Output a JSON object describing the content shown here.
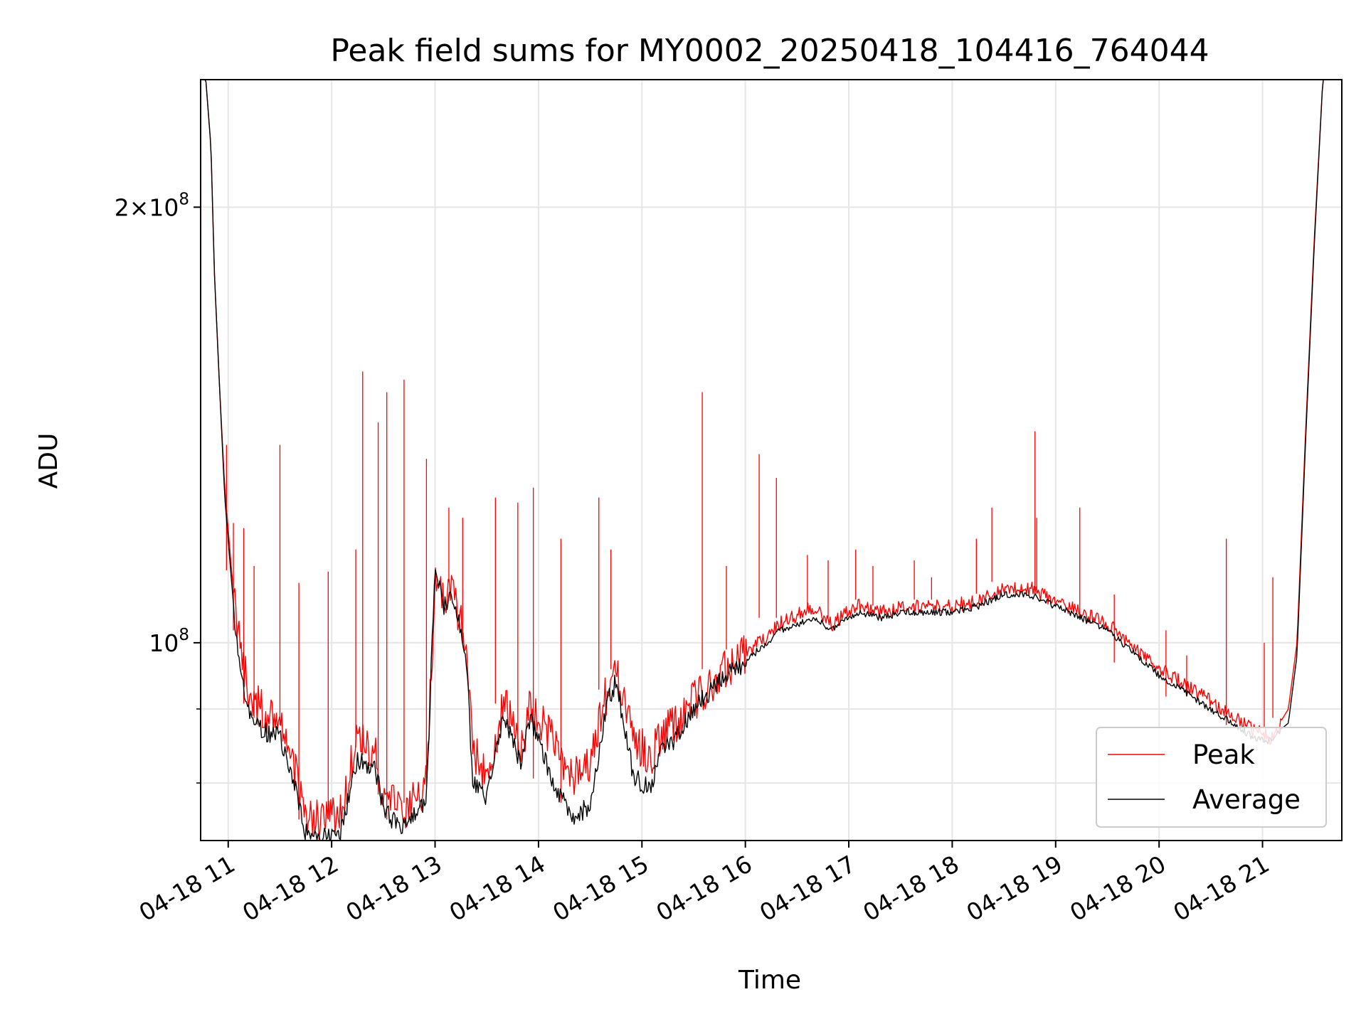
{
  "chart_data": {
    "type": "line",
    "title": "Peak field sums for MY0002_20250418_104416_764044",
    "xlabel": "Time",
    "ylabel": "ADU",
    "y_scale": "log",
    "ylim": [
      73000000,
      245000000
    ],
    "xlim": [
      "2025-04-18 10:44",
      "2025-04-18 21:46"
    ],
    "x_tick_labels": [
      "04-18 11",
      "04-18 12",
      "04-18 13",
      "04-18 14",
      "04-18 15",
      "04-18 16",
      "04-18 17",
      "04-18 18",
      "04-18 19",
      "04-18 20",
      "04-18 21"
    ],
    "y_ticks": [
      {
        "value": 100000000,
        "mantissa": "",
        "exp": "8"
      },
      {
        "value": 200000000,
        "mantissa": "2",
        "exp": "8"
      }
    ],
    "grid": true,
    "legend_position": "lower-right",
    "x": [
      "2025-04-18 10:44",
      "2025-04-18 10:47",
      "2025-04-18 10:50",
      "2025-04-18 10:52",
      "2025-04-18 10:55",
      "2025-04-18 10:58",
      "2025-04-18 11:02",
      "2025-04-18 11:05",
      "2025-04-18 11:08",
      "2025-04-18 11:12",
      "2025-04-18 11:20",
      "2025-04-18 11:30",
      "2025-04-18 11:38",
      "2025-04-18 11:45",
      "2025-04-18 11:55",
      "2025-04-18 12:05",
      "2025-04-18 12:15",
      "2025-04-18 12:25",
      "2025-04-18 12:30",
      "2025-04-18 12:40",
      "2025-04-18 12:48",
      "2025-04-18 12:55",
      "2025-04-18 13:00",
      "2025-04-18 13:05",
      "2025-04-18 13:10",
      "2025-04-18 13:18",
      "2025-04-18 13:22",
      "2025-04-18 13:30",
      "2025-04-18 13:40",
      "2025-04-18 13:50",
      "2025-04-18 13:55",
      "2025-04-18 14:10",
      "2025-04-18 14:20",
      "2025-04-18 14:30",
      "2025-04-18 14:40",
      "2025-04-18 14:45",
      "2025-04-18 14:55",
      "2025-04-18 15:05",
      "2025-04-18 15:10",
      "2025-04-18 15:20",
      "2025-04-18 15:30",
      "2025-04-18 15:45",
      "2025-04-18 16:00",
      "2025-04-18 16:20",
      "2025-04-18 16:40",
      "2025-04-18 16:50",
      "2025-04-18 16:55",
      "2025-04-18 17:05",
      "2025-04-18 17:20",
      "2025-04-18 17:30",
      "2025-04-18 17:45",
      "2025-04-18 18:00",
      "2025-04-18 18:15",
      "2025-04-18 18:30",
      "2025-04-18 18:45",
      "2025-04-18 19:00",
      "2025-04-18 19:30",
      "2025-04-18 20:00",
      "2025-04-18 20:30",
      "2025-04-18 20:55",
      "2025-04-18 21:05",
      "2025-04-18 21:10",
      "2025-04-18 21:15",
      "2025-04-18 21:20",
      "2025-04-18 21:25",
      "2025-04-18 21:30",
      "2025-04-18 21:35",
      "2025-04-18 21:40",
      "2025-04-18 21:46"
    ],
    "series": [
      {
        "name": "Peak",
        "color": "#ff0000",
        "values": [
          245000000,
          245000000,
          220000000,
          180000000,
          150000000,
          128000000,
          112000000,
          103000000,
          98000000,
          92000000,
          90000000,
          88000000,
          82000000,
          76000000,
          75000000,
          76000000,
          86000000,
          84000000,
          79000000,
          76000000,
          78000000,
          80000000,
          110000000,
          107000000,
          109000000,
          100000000,
          85000000,
          80000000,
          91000000,
          84000000,
          91000000,
          85000000,
          81000000,
          82000000,
          93000000,
          95000000,
          86000000,
          83000000,
          86000000,
          88000000,
          91000000,
          95000000,
          98000000,
          103000000,
          106000000,
          103000000,
          104000000,
          106000000,
          105000000,
          106000000,
          106000000,
          106000000,
          107000000,
          109000000,
          109000000,
          107000000,
          103000000,
          96000000,
          91000000,
          87000000,
          86000000,
          88000000,
          90000000,
          100000000,
          140000000,
          190000000,
          245000000,
          245000000,
          245000000
        ]
      },
      {
        "name": "Average",
        "color": "#000000",
        "values": [
          245000000,
          245000000,
          220000000,
          180000000,
          150000000,
          126000000,
          110000000,
          100000000,
          95000000,
          89000000,
          87000000,
          86000000,
          80000000,
          74000000,
          73500000,
          74000000,
          83000000,
          82000000,
          77000000,
          74000000,
          76000000,
          78000000,
          113000000,
          106000000,
          108000000,
          98000000,
          80000000,
          78000000,
          89000000,
          82000000,
          89000000,
          79000000,
          76000000,
          77000000,
          91000000,
          94000000,
          81000000,
          79000000,
          84000000,
          86000000,
          90000000,
          94000000,
          97000000,
          102000000,
          104000000,
          102000000,
          103000000,
          105000000,
          104000000,
          105000000,
          105000000,
          105000000,
          106000000,
          108000000,
          108000000,
          106000000,
          102000000,
          95000000,
          90000000,
          86000000,
          85500000,
          87000000,
          88000000,
          98000000,
          138000000,
          188000000,
          245000000,
          245000000,
          245000000
        ]
      }
    ],
    "peak_spikes": [
      [
        "2025-04-18 10:59",
        137000000
      ],
      [
        "2025-04-18 11:03",
        121000000
      ],
      [
        "2025-04-18 11:09",
        120000000
      ],
      [
        "2025-04-18 11:15",
        113000000
      ],
      [
        "2025-04-18 11:30",
        137000000
      ],
      [
        "2025-04-18 11:41",
        110000000
      ],
      [
        "2025-04-18 11:58",
        112000000
      ],
      [
        "2025-04-18 12:14",
        116000000
      ],
      [
        "2025-04-18 12:18",
        154000000
      ],
      [
        "2025-04-18 12:27",
        142000000
      ],
      [
        "2025-04-18 12:32",
        149000000
      ],
      [
        "2025-04-18 12:42",
        152000000
      ],
      [
        "2025-04-18 12:55",
        134000000
      ],
      [
        "2025-04-18 13:08",
        124000000
      ],
      [
        "2025-04-18 13:16",
        122000000
      ],
      [
        "2025-04-18 13:35",
        126000000
      ],
      [
        "2025-04-18 13:48",
        125000000
      ],
      [
        "2025-04-18 13:57",
        128000000
      ],
      [
        "2025-04-18 14:13",
        118000000
      ],
      [
        "2025-04-18 14:35",
        126000000
      ],
      [
        "2025-04-18 14:42",
        116000000
      ],
      [
        "2025-04-18 15:35",
        149000000
      ],
      [
        "2025-04-18 15:49",
        113000000
      ],
      [
        "2025-04-18 16:08",
        135000000
      ],
      [
        "2025-04-18 16:18",
        130000000
      ],
      [
        "2025-04-18 16:36",
        115000000
      ],
      [
        "2025-04-18 16:48",
        114000000
      ],
      [
        "2025-04-18 17:04",
        116000000
      ],
      [
        "2025-04-18 17:14",
        113000000
      ],
      [
        "2025-04-18 17:38",
        114000000
      ],
      [
        "2025-04-18 17:48",
        111000000
      ],
      [
        "2025-04-18 18:14",
        118000000
      ],
      [
        "2025-04-18 18:23",
        124000000
      ],
      [
        "2025-04-18 18:48",
        140000000
      ],
      [
        "2025-04-18 18:49",
        122000000
      ],
      [
        "2025-04-18 19:14",
        124000000
      ],
      [
        "2025-04-18 19:34",
        108000000
      ],
      [
        "2025-04-18 20:04",
        102000000
      ],
      [
        "2025-04-18 20:16",
        98000000
      ],
      [
        "2025-04-18 20:39",
        118000000
      ],
      [
        "2025-04-18 21:01",
        100000000
      ],
      [
        "2025-04-18 21:06",
        111000000
      ]
    ]
  }
}
